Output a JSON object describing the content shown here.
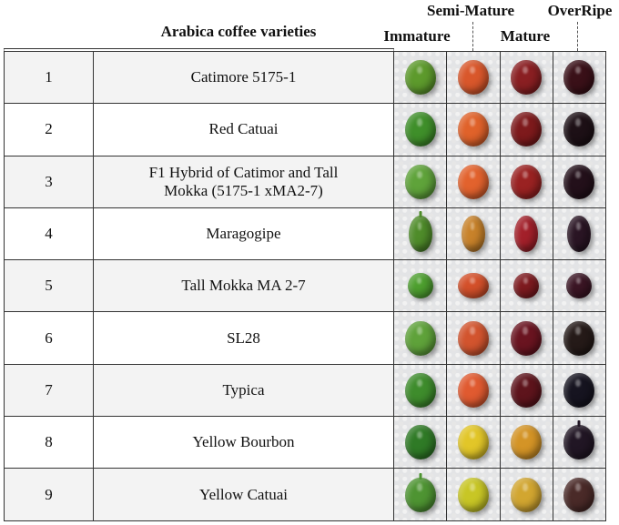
{
  "headers": {
    "varieties": "Arabica coffee varieties",
    "immature": "Immature",
    "semi_mature": "Semi-Mature",
    "mature": "Mature",
    "overripe": "OverRipe"
  },
  "stages": [
    "Immature",
    "Semi-Mature",
    "Mature",
    "OverRipe"
  ],
  "rows": [
    {
      "num": "1",
      "name": "Catimore 5175-1",
      "colors": [
        "#5d9a2c",
        "#d9572b",
        "#8a1f22",
        "#3a1018"
      ]
    },
    {
      "num": "2",
      "name": "Red Catuai",
      "colors": [
        "#3f8f2a",
        "#e0622a",
        "#7e1a1c",
        "#1d1016"
      ]
    },
    {
      "num": "3",
      "name": "F1 Hybrid of Catimor and Tall Mokka (5175-1 xMA2-7)",
      "colors": [
        "#5fa33a",
        "#e2622d",
        "#9a2222",
        "#23101a"
      ]
    },
    {
      "num": "4",
      "name": "Maragogipe",
      "colors": [
        "#4f8c2a",
        "#c8822a",
        "#a3202a",
        "#2a1524"
      ]
    },
    {
      "num": "5",
      "name": "Tall Mokka MA 2-7",
      "colors": [
        "#4ea02f",
        "#d4502a",
        "#7e1a1f",
        "#3b1524"
      ]
    },
    {
      "num": "6",
      "name": "SL28",
      "colors": [
        "#5fa23a",
        "#d2542e",
        "#6a1420",
        "#251a18"
      ]
    },
    {
      "num": "7",
      "name": "Typica",
      "colors": [
        "#3e8c2c",
        "#e05a30",
        "#5e141c",
        "#161420"
      ]
    },
    {
      "num": "8",
      "name": "Yellow Bourbon",
      "colors": [
        "#2f7a26",
        "#e2c628",
        "#d49426",
        "#211624"
      ]
    },
    {
      "num": "9",
      "name": "Yellow Catuai",
      "colors": [
        "#4e9432",
        "#c8c625",
        "#d2a630",
        "#4a2a28"
      ]
    }
  ]
}
